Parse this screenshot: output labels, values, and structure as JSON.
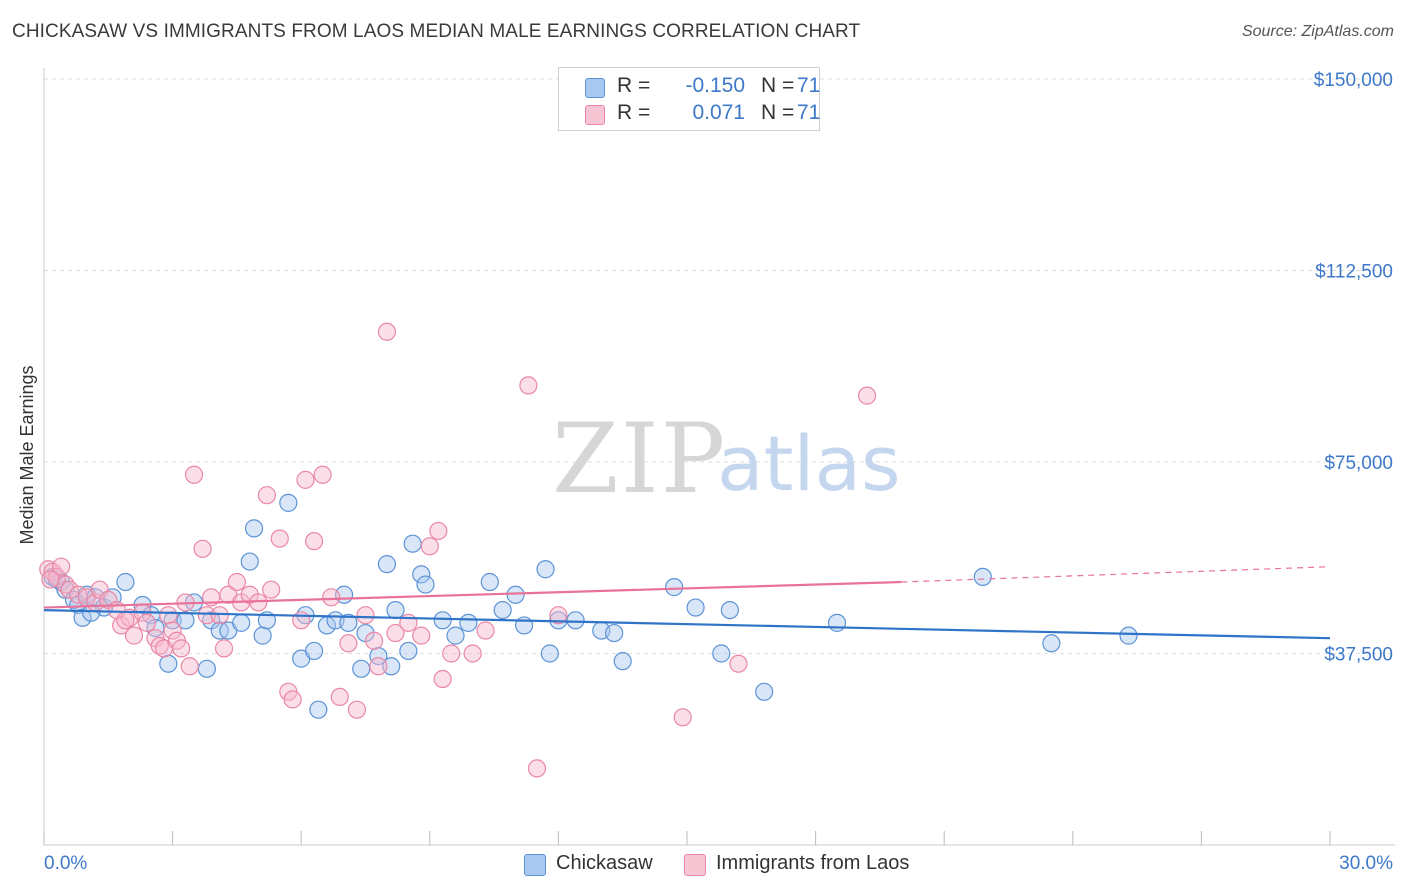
{
  "title": "CHICKASAW VS IMMIGRANTS FROM LAOS MEDIAN MALE EARNINGS CORRELATION CHART",
  "source": "Source: ZipAtlas.com",
  "watermark": {
    "zip": "ZIP",
    "atlas": "atlas"
  },
  "legend": {
    "series1": {
      "r_label": "R =",
      "r_value": "-0.150",
      "n_label": "N =",
      "n_value": "71"
    },
    "series2": {
      "r_label": "R =",
      "r_value": "0.071",
      "n_label": "N =",
      "n_value": "71"
    }
  },
  "bottom_legend": {
    "series1": "Chickasaw",
    "series2": "Immigrants from Laos"
  },
  "colors": {
    "blue_fill": "#a8c8f0",
    "blue_stroke": "#5b93d6",
    "blue_line": "#2f74c8",
    "pink_fill": "#f7b9cc",
    "pink_stroke": "#ea87a6",
    "pink_line": "#e8729a",
    "tick_text": "#3d78c9",
    "grid": "#dddddd"
  },
  "chart_data": {
    "type": "scatter",
    "title": "CHICKASAW VS IMMIGRANTS FROM LAOS MEDIAN MALE EARNINGS CORRELATION CHART",
    "xlabel": "",
    "ylabel": "Median Male Earnings",
    "xlim": [
      0,
      30
    ],
    "ylim": [
      0,
      155000
    ],
    "x_tick_labels": [
      "0.0%",
      "30.0%"
    ],
    "y_ticks": [
      37500,
      75000,
      112500,
      150000
    ],
    "y_tick_labels": [
      "$37,500",
      "$75,000",
      "$112,500",
      "$150,000"
    ],
    "grid": true,
    "series": [
      {
        "name": "Chickasaw",
        "r": -0.15,
        "n": 71,
        "trend": {
          "x": [
            0,
            30
          ],
          "y": [
            46000,
            40500
          ]
        },
        "points": [
          [
            0.2,
            52500
          ],
          [
            0.4,
            51500
          ],
          [
            0.5,
            50000
          ],
          [
            0.7,
            48000
          ],
          [
            0.8,
            47000
          ],
          [
            0.9,
            44500
          ],
          [
            1.0,
            49000
          ],
          [
            1.2,
            48500
          ],
          [
            1.4,
            46500
          ],
          [
            1.6,
            48500
          ],
          [
            1.9,
            51500
          ],
          [
            2.3,
            47000
          ],
          [
            2.5,
            45000
          ],
          [
            2.6,
            42500
          ],
          [
            2.9,
            35500
          ],
          [
            3.0,
            44000
          ],
          [
            3.3,
            44000
          ],
          [
            3.5,
            47500
          ],
          [
            3.8,
            34500
          ],
          [
            3.9,
            44000
          ],
          [
            4.1,
            42000
          ],
          [
            4.3,
            42000
          ],
          [
            4.6,
            43500
          ],
          [
            4.8,
            55500
          ],
          [
            4.9,
            62000
          ],
          [
            5.1,
            41000
          ],
          [
            5.2,
            44000
          ],
          [
            5.7,
            67000
          ],
          [
            6.0,
            36500
          ],
          [
            6.1,
            45000
          ],
          [
            6.3,
            38000
          ],
          [
            6.4,
            26500
          ],
          [
            6.6,
            43000
          ],
          [
            6.8,
            44000
          ],
          [
            7.0,
            49000
          ],
          [
            7.1,
            43500
          ],
          [
            7.4,
            34500
          ],
          [
            7.5,
            41500
          ],
          [
            7.8,
            37000
          ],
          [
            8.0,
            55000
          ],
          [
            8.1,
            35000
          ],
          [
            8.2,
            46000
          ],
          [
            8.5,
            38000
          ],
          [
            8.6,
            59000
          ],
          [
            8.8,
            53000
          ],
          [
            8.9,
            51000
          ],
          [
            9.3,
            44000
          ],
          [
            9.6,
            41000
          ],
          [
            9.9,
            43500
          ],
          [
            10.4,
            51500
          ],
          [
            10.7,
            46000
          ],
          [
            11.0,
            49000
          ],
          [
            11.2,
            43000
          ],
          [
            11.7,
            54000
          ],
          [
            11.8,
            37500
          ],
          [
            12.0,
            44000
          ],
          [
            12.4,
            44000
          ],
          [
            13.0,
            42000
          ],
          [
            13.3,
            41500
          ],
          [
            13.5,
            36000
          ],
          [
            14.7,
            50500
          ],
          [
            15.2,
            46500
          ],
          [
            15.8,
            37500
          ],
          [
            16.0,
            46000
          ],
          [
            16.8,
            30000
          ],
          [
            18.5,
            43500
          ],
          [
            21.9,
            52500
          ],
          [
            23.5,
            39500
          ],
          [
            25.3,
            41000
          ],
          [
            0.3,
            52000
          ],
          [
            1.1,
            45500
          ]
        ]
      },
      {
        "name": "Immigrants from Laos",
        "r": 0.071,
        "n": 71,
        "trend": {
          "x": [
            0,
            20
          ],
          "y": [
            46500,
            51500
          ],
          "dashed_to": {
            "x": 30,
            "y": 54500
          }
        },
        "points": [
          [
            0.1,
            54000
          ],
          [
            0.2,
            53500
          ],
          [
            0.3,
            52500
          ],
          [
            0.4,
            54500
          ],
          [
            0.5,
            51000
          ],
          [
            0.6,
            50000
          ],
          [
            0.8,
            49000
          ],
          [
            1.0,
            48500
          ],
          [
            1.2,
            47500
          ],
          [
            1.3,
            50000
          ],
          [
            1.5,
            48000
          ],
          [
            1.7,
            46000
          ],
          [
            1.8,
            43000
          ],
          [
            2.0,
            44500
          ],
          [
            2.1,
            41000
          ],
          [
            2.3,
            45500
          ],
          [
            2.4,
            43500
          ],
          [
            2.6,
            40500
          ],
          [
            2.7,
            39000
          ],
          [
            2.8,
            38500
          ],
          [
            2.9,
            45000
          ],
          [
            3.0,
            42000
          ],
          [
            3.1,
            40000
          ],
          [
            3.2,
            38500
          ],
          [
            3.3,
            47500
          ],
          [
            3.4,
            35000
          ],
          [
            3.5,
            72500
          ],
          [
            3.7,
            58000
          ],
          [
            3.8,
            45000
          ],
          [
            3.9,
            48500
          ],
          [
            4.1,
            45000
          ],
          [
            4.2,
            38500
          ],
          [
            4.3,
            49000
          ],
          [
            4.5,
            51500
          ],
          [
            4.6,
            47500
          ],
          [
            4.8,
            49000
          ],
          [
            5.0,
            47500
          ],
          [
            5.2,
            68500
          ],
          [
            5.3,
            50000
          ],
          [
            5.5,
            60000
          ],
          [
            5.7,
            30000
          ],
          [
            5.8,
            28500
          ],
          [
            6.0,
            44000
          ],
          [
            6.1,
            71500
          ],
          [
            6.3,
            59500
          ],
          [
            6.5,
            72500
          ],
          [
            6.7,
            48500
          ],
          [
            6.9,
            29000
          ],
          [
            7.1,
            39500
          ],
          [
            7.3,
            26500
          ],
          [
            7.5,
            45000
          ],
          [
            7.7,
            40000
          ],
          [
            7.8,
            35000
          ],
          [
            8.0,
            100500
          ],
          [
            8.2,
            41500
          ],
          [
            8.5,
            43500
          ],
          [
            8.8,
            41000
          ],
          [
            9.0,
            58500
          ],
          [
            9.2,
            61500
          ],
          [
            9.3,
            32500
          ],
          [
            9.5,
            37500
          ],
          [
            10.0,
            37500
          ],
          [
            10.3,
            42000
          ],
          [
            11.3,
            90000
          ],
          [
            11.5,
            15000
          ],
          [
            12.0,
            45000
          ],
          [
            14.9,
            25000
          ],
          [
            16.2,
            35500
          ],
          [
            19.2,
            88000
          ],
          [
            0.15,
            52000
          ],
          [
            1.9,
            44000
          ]
        ]
      }
    ]
  }
}
